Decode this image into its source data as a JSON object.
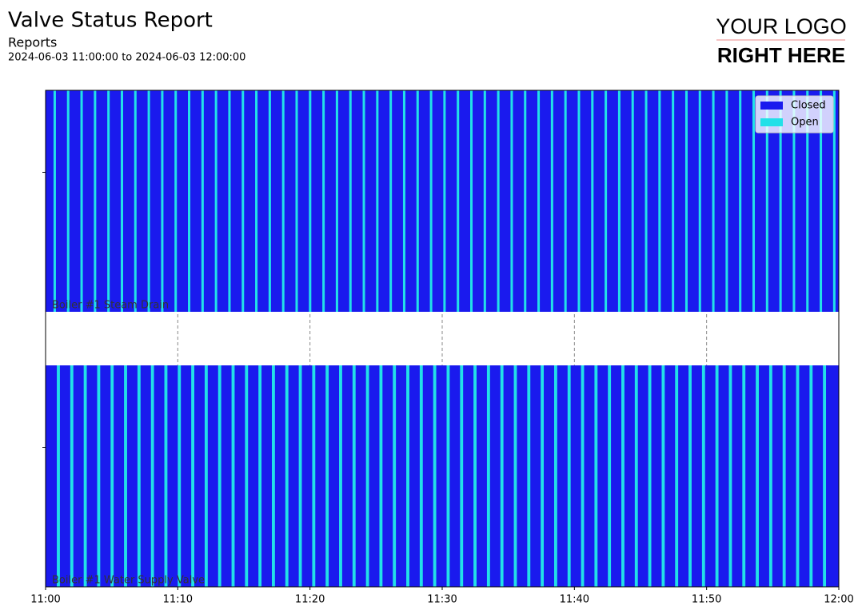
{
  "chart_data": {
    "type": "state-timeline",
    "title": "Valve Status Report",
    "subtitle": "Reports",
    "range_text": "2024-06-03 11:00:00 to 2024-06-03 12:00:00",
    "logo": {
      "line1": "YOUR LOGO",
      "line2": "RIGHT HERE"
    },
    "xlim": [
      "11:00",
      "12:00"
    ],
    "xticks": [
      "11:00",
      "11:10",
      "11:20",
      "11:30",
      "11:40",
      "11:50",
      "12:00"
    ],
    "grid": true,
    "legend": "upper right",
    "series": [
      {
        "name": "Closed",
        "color": "#1a1aee"
      },
      {
        "name": "Open",
        "color": "#22e0e8"
      }
    ],
    "rows": [
      {
        "label": "Boiler #1 Steam Drain",
        "open": [
          [
            "11:00:36",
            "11:00:47"
          ],
          [
            "11:01:37",
            "11:01:48"
          ],
          [
            "11:02:38",
            "11:02:49"
          ],
          [
            "11:03:39",
            "11:03:50"
          ],
          [
            "11:04:40",
            "11:04:51"
          ],
          [
            "11:05:41",
            "11:05:52"
          ],
          [
            "11:06:42",
            "11:06:53"
          ],
          [
            "11:07:43",
            "11:07:54"
          ],
          [
            "11:08:44",
            "11:08:55"
          ],
          [
            "11:09:45",
            "11:09:56"
          ],
          [
            "11:10:46",
            "11:10:57"
          ],
          [
            "11:11:47",
            "11:11:58"
          ],
          [
            "11:12:48",
            "11:12:59"
          ],
          [
            "11:13:49",
            "11:14:00"
          ],
          [
            "11:14:50",
            "11:15:01"
          ],
          [
            "11:15:51",
            "11:16:02"
          ],
          [
            "11:16:52",
            "11:17:03"
          ],
          [
            "11:17:53",
            "11:18:04"
          ],
          [
            "11:18:54",
            "11:19:05"
          ],
          [
            "11:19:55",
            "11:20:06"
          ],
          [
            "11:20:56",
            "11:21:07"
          ],
          [
            "11:21:57",
            "11:22:08"
          ],
          [
            "11:22:58",
            "11:23:09"
          ],
          [
            "11:23:59",
            "11:24:10"
          ],
          [
            "11:25:00",
            "11:25:11"
          ],
          [
            "11:26:01",
            "11:26:12"
          ],
          [
            "11:27:02",
            "11:27:13"
          ],
          [
            "11:28:03",
            "11:28:14"
          ],
          [
            "11:29:04",
            "11:29:15"
          ],
          [
            "11:30:05",
            "11:30:16"
          ],
          [
            "11:31:06",
            "11:31:17"
          ],
          [
            "11:32:07",
            "11:32:18"
          ],
          [
            "11:33:08",
            "11:33:19"
          ],
          [
            "11:34:09",
            "11:34:20"
          ],
          [
            "11:35:10",
            "11:35:21"
          ],
          [
            "11:36:11",
            "11:36:22"
          ],
          [
            "11:37:12",
            "11:37:23"
          ],
          [
            "11:38:13",
            "11:38:24"
          ],
          [
            "11:39:14",
            "11:39:25"
          ],
          [
            "11:40:15",
            "11:40:26"
          ],
          [
            "11:41:16",
            "11:41:27"
          ],
          [
            "11:42:17",
            "11:42:28"
          ],
          [
            "11:43:18",
            "11:43:29"
          ],
          [
            "11:44:19",
            "11:44:30"
          ],
          [
            "11:45:20",
            "11:45:31"
          ],
          [
            "11:46:21",
            "11:46:32"
          ],
          [
            "11:47:22",
            "11:47:33"
          ],
          [
            "11:48:23",
            "11:48:34"
          ],
          [
            "11:49:24",
            "11:49:35"
          ],
          [
            "11:50:25",
            "11:50:36"
          ],
          [
            "11:51:26",
            "11:51:37"
          ],
          [
            "11:52:27",
            "11:52:38"
          ],
          [
            "11:53:28",
            "11:53:39"
          ],
          [
            "11:54:29",
            "11:54:40"
          ],
          [
            "11:55:30",
            "11:55:41"
          ],
          [
            "11:56:31",
            "11:56:42"
          ],
          [
            "11:57:32",
            "11:57:43"
          ],
          [
            "11:58:33",
            "11:58:44"
          ],
          [
            "11:59:34",
            "11:59:45"
          ]
        ]
      },
      {
        "label": "Boiler #1 Water Supply Valve",
        "open": [
          [
            "11:00:51",
            "11:01:05"
          ],
          [
            "11:01:52",
            "11:02:06"
          ],
          [
            "11:02:53",
            "11:03:07"
          ],
          [
            "11:03:54",
            "11:04:08"
          ],
          [
            "11:04:55",
            "11:05:09"
          ],
          [
            "11:05:56",
            "11:06:10"
          ],
          [
            "11:06:57",
            "11:07:11"
          ],
          [
            "11:07:58",
            "11:08:12"
          ],
          [
            "11:08:59",
            "11:09:13"
          ],
          [
            "11:10:00",
            "11:10:14"
          ],
          [
            "11:11:01",
            "11:11:15"
          ],
          [
            "11:12:02",
            "11:12:16"
          ],
          [
            "11:13:03",
            "11:13:17"
          ],
          [
            "11:14:04",
            "11:14:18"
          ],
          [
            "11:15:05",
            "11:15:19"
          ],
          [
            "11:16:06",
            "11:16:20"
          ],
          [
            "11:17:07",
            "11:17:21"
          ],
          [
            "11:18:08",
            "11:18:22"
          ],
          [
            "11:19:09",
            "11:19:23"
          ],
          [
            "11:20:10",
            "11:20:24"
          ],
          [
            "11:21:11",
            "11:21:25"
          ],
          [
            "11:22:12",
            "11:22:26"
          ],
          [
            "11:23:13",
            "11:23:27"
          ],
          [
            "11:24:14",
            "11:24:28"
          ],
          [
            "11:25:15",
            "11:25:29"
          ],
          [
            "11:26:16",
            "11:26:30"
          ],
          [
            "11:27:17",
            "11:27:31"
          ],
          [
            "11:28:18",
            "11:28:32"
          ],
          [
            "11:29:19",
            "11:29:33"
          ],
          [
            "11:30:20",
            "11:30:34"
          ],
          [
            "11:31:21",
            "11:31:35"
          ],
          [
            "11:32:22",
            "11:32:36"
          ],
          [
            "11:33:23",
            "11:33:37"
          ],
          [
            "11:34:24",
            "11:34:38"
          ],
          [
            "11:35:25",
            "11:35:39"
          ],
          [
            "11:36:26",
            "11:36:40"
          ],
          [
            "11:37:27",
            "11:37:41"
          ],
          [
            "11:38:28",
            "11:38:42"
          ],
          [
            "11:39:29",
            "11:39:43"
          ],
          [
            "11:40:30",
            "11:40:44"
          ],
          [
            "11:41:31",
            "11:41:45"
          ],
          [
            "11:42:32",
            "11:42:46"
          ],
          [
            "11:43:33",
            "11:43:47"
          ],
          [
            "11:44:34",
            "11:44:48"
          ],
          [
            "11:45:35",
            "11:45:49"
          ],
          [
            "11:46:36",
            "11:46:50"
          ],
          [
            "11:47:37",
            "11:47:51"
          ],
          [
            "11:48:38",
            "11:48:52"
          ],
          [
            "11:49:39",
            "11:49:53"
          ],
          [
            "11:50:40",
            "11:50:54"
          ],
          [
            "11:51:41",
            "11:51:55"
          ],
          [
            "11:52:42",
            "11:52:56"
          ],
          [
            "11:53:43",
            "11:53:57"
          ],
          [
            "11:54:44",
            "11:54:58"
          ],
          [
            "11:55:45",
            "11:55:59"
          ],
          [
            "11:56:46",
            "11:57:00"
          ],
          [
            "11:57:47",
            "11:58:01"
          ],
          [
            "11:58:48",
            "11:59:02"
          ]
        ]
      }
    ]
  }
}
